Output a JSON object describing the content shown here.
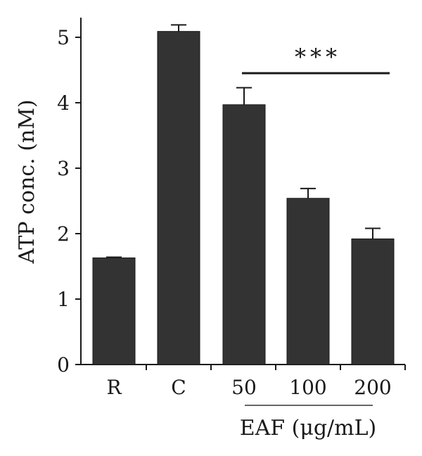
{
  "chart_data": {
    "type": "bar",
    "categories": [
      "R",
      "C",
      "50",
      "100",
      "200"
    ],
    "values": [
      1.63,
      5.09,
      3.97,
      2.54,
      1.92
    ],
    "errors": [
      0.01,
      0.1,
      0.26,
      0.15,
      0.16
    ],
    "ylabel": "ATP conc. (nM)",
    "ylim": [
      0,
      5.3
    ],
    "yticks": [
      "0",
      "1",
      "2",
      "3",
      "4",
      "5"
    ],
    "group_label": "EAF (μg/mL)",
    "significance": {
      "label": "***",
      "from_category": "50",
      "to_category": "200"
    },
    "grid": false,
    "bar_color": "#333333"
  }
}
